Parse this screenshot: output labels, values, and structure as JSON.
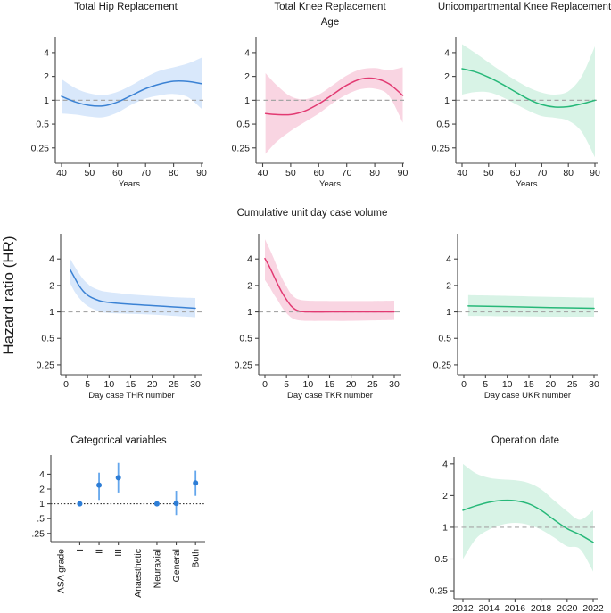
{
  "figure": {
    "y_axis_label": "Hazard ratio (HR)",
    "row2_title": "Cumulative unit day case volume",
    "ref_line_value": 1,
    "colors": {
      "thr_line": "#3b82d4",
      "thr_band": "#d9e8fb",
      "tkr_line": "#e23a72",
      "tkr_band": "#f9d5e2",
      "ukr_line": "#27b879",
      "ukr_band": "#d8f3e6",
      "ci_bar": "#64a6ec",
      "point": "#2d7dd6",
      "ref_dash": "#a6a6a6",
      "ref_dot": "#1a1a1a",
      "axis": "#454545",
      "text": "#1a1a1a"
    }
  },
  "chart_data": [
    {
      "id": "thr-age",
      "type": "line",
      "title": "Total Hip Replacement",
      "xlabel": "Years",
      "line_color": "#3b82d4",
      "band_color": "#d9e8fb",
      "xticks": [
        40,
        50,
        60,
        70,
        80,
        90
      ],
      "xtick_labels": [
        "40",
        "50",
        "60",
        "70",
        "80",
        "90"
      ],
      "yticks": [
        4,
        2,
        1,
        0.5,
        0.25
      ],
      "ytick_labels": [
        "4",
        "2",
        "1",
        "0.5",
        "0.25"
      ],
      "ref": 1,
      "x": [
        40,
        45,
        50,
        55,
        60,
        65,
        70,
        75,
        80,
        85,
        90
      ],
      "y": [
        1.12,
        0.95,
        0.86,
        0.85,
        0.95,
        1.15,
        1.4,
        1.6,
        1.74,
        1.73,
        1.62
      ],
      "lo": [
        0.68,
        0.66,
        0.62,
        0.61,
        0.7,
        0.88,
        1.05,
        1.15,
        1.2,
        1.1,
        0.78
      ],
      "hi": [
        1.85,
        1.42,
        1.22,
        1.16,
        1.28,
        1.55,
        1.95,
        2.35,
        2.6,
        2.9,
        3.45
      ]
    },
    {
      "id": "tkr-age",
      "type": "line",
      "title": "Total Knee Replacement",
      "subtitle": "Age",
      "xlabel": "Years",
      "line_color": "#e23a72",
      "band_color": "#f9d5e2",
      "xticks": [
        40,
        50,
        60,
        70,
        80,
        90
      ],
      "xtick_labels": [
        "40",
        "50",
        "60",
        "70",
        "80",
        "90"
      ],
      "yticks": [
        4,
        2,
        1,
        0.5,
        0.25
      ],
      "ytick_labels": [
        "4",
        "2",
        "1",
        "0.5",
        "0.25"
      ],
      "ref": 1,
      "x": [
        41,
        45,
        50,
        55,
        60,
        65,
        70,
        75,
        80,
        85,
        90
      ],
      "y": [
        0.68,
        0.66,
        0.66,
        0.73,
        0.9,
        1.18,
        1.55,
        1.85,
        1.88,
        1.62,
        1.15
      ],
      "lo": [
        0.21,
        0.3,
        0.41,
        0.53,
        0.68,
        0.92,
        1.18,
        1.38,
        1.4,
        1.15,
        0.52
      ],
      "hi": [
        2.2,
        1.55,
        1.12,
        1.03,
        1.18,
        1.55,
        2.05,
        2.45,
        2.55,
        2.4,
        2.6
      ]
    },
    {
      "id": "ukr-age",
      "type": "line",
      "title": "Unicompartmental Knee Replacement",
      "xlabel": "Years",
      "line_color": "#27b879",
      "band_color": "#d8f3e6",
      "xticks": [
        40,
        50,
        60,
        70,
        80,
        90
      ],
      "xtick_labels": [
        "40",
        "50",
        "60",
        "70",
        "80",
        "90"
      ],
      "yticks": [
        4,
        2,
        1,
        0.5,
        0.25
      ],
      "ytick_labels": [
        "4",
        "2",
        "1",
        "0.5",
        "0.25"
      ],
      "ref": 1,
      "x": [
        40,
        45,
        50,
        55,
        60,
        65,
        70,
        75,
        80,
        85,
        90
      ],
      "y": [
        2.5,
        2.28,
        1.95,
        1.6,
        1.28,
        1.03,
        0.88,
        0.82,
        0.83,
        0.9,
        1.0
      ],
      "lo": [
        1.18,
        1.27,
        1.26,
        1.1,
        0.9,
        0.74,
        0.63,
        0.6,
        0.55,
        0.4,
        0.19
      ],
      "hi": [
        5.1,
        3.95,
        3.0,
        2.3,
        1.8,
        1.45,
        1.25,
        1.18,
        1.3,
        2.0,
        4.8
      ]
    },
    {
      "id": "thr-volume",
      "type": "line",
      "xlabel": "Day case THR number",
      "line_color": "#3b82d4",
      "band_color": "#d9e8fb",
      "xticks": [
        0,
        5,
        10,
        15,
        20,
        25,
        30
      ],
      "xtick_labels": [
        "0",
        "5",
        "10",
        "15",
        "20",
        "25",
        "30"
      ],
      "yticks": [
        4,
        2,
        1,
        0.5,
        0.25
      ],
      "ytick_labels": [
        "4",
        "2",
        "1",
        "0.5",
        "0.25"
      ],
      "ref": 1,
      "x": [
        1,
        2,
        3,
        4,
        5,
        6,
        8,
        10,
        15,
        20,
        25,
        30
      ],
      "y": [
        3.0,
        2.45,
        2.0,
        1.72,
        1.55,
        1.45,
        1.33,
        1.28,
        1.22,
        1.18,
        1.14,
        1.1
      ],
      "lo": [
        2.1,
        1.7,
        1.45,
        1.28,
        1.17,
        1.1,
        1.0,
        0.97,
        0.95,
        0.93,
        0.9,
        0.87
      ],
      "hi": [
        4.0,
        3.3,
        2.75,
        2.35,
        2.1,
        1.92,
        1.75,
        1.68,
        1.58,
        1.52,
        1.47,
        1.44
      ]
    },
    {
      "id": "tkr-volume",
      "type": "line",
      "xlabel": "Day case TKR number",
      "line_color": "#e23a72",
      "band_color": "#f9d5e2",
      "xticks": [
        0,
        5,
        10,
        15,
        20,
        25,
        30
      ],
      "xtick_labels": [
        "0",
        "5",
        "10",
        "15",
        "20",
        "25",
        "30"
      ],
      "yticks": [
        4,
        2,
        1,
        0.5,
        0.25
      ],
      "ytick_labels": [
        "4",
        "2",
        "1",
        "0.5",
        "0.25"
      ],
      "ref": 1,
      "x": [
        0,
        1,
        2,
        3,
        4,
        5,
        6,
        7,
        8,
        10,
        15,
        20,
        25,
        30
      ],
      "y": [
        4.05,
        3.3,
        2.6,
        2.05,
        1.65,
        1.38,
        1.18,
        1.07,
        1.02,
        1.0,
        1.0,
        1.0,
        1.0,
        1.0
      ],
      "lo": [
        2.3,
        1.95,
        1.6,
        1.35,
        1.12,
        0.97,
        0.87,
        0.82,
        0.8,
        0.79,
        0.79,
        0.79,
        0.8,
        0.81
      ],
      "hi": [
        6.7,
        5.3,
        4.1,
        3.1,
        2.4,
        1.95,
        1.62,
        1.45,
        1.38,
        1.34,
        1.33,
        1.33,
        1.33,
        1.34
      ]
    },
    {
      "id": "ukr-volume",
      "type": "line",
      "xlabel": "Day case UKR number",
      "line_color": "#27b879",
      "band_color": "#d8f3e6",
      "xticks": [
        0,
        5,
        10,
        15,
        20,
        25,
        30
      ],
      "xtick_labels": [
        "0",
        "5",
        "10",
        "15",
        "20",
        "25",
        "30"
      ],
      "yticks": [
        4,
        2,
        1,
        0.5,
        0.25
      ],
      "ytick_labels": [
        "4",
        "2",
        "1",
        "0.5",
        "0.25"
      ],
      "ref": 1,
      "x": [
        1,
        10,
        20,
        30
      ],
      "y": [
        1.17,
        1.15,
        1.12,
        1.1
      ],
      "lo": [
        0.9,
        0.89,
        0.88,
        0.88
      ],
      "hi": [
        1.55,
        1.52,
        1.48,
        1.45
      ]
    },
    {
      "id": "categorical",
      "type": "scatter",
      "title": "Categorical variables",
      "yticks": [
        4,
        2,
        1,
        0.5,
        0.25
      ],
      "ytick_labels": [
        "4",
        "2",
        "1",
        ".5",
        ".25"
      ],
      "ref": 1,
      "categories": [
        {
          "label": "ASA grade",
          "tick": false,
          "point": null
        },
        {
          "label": "I",
          "tick": true,
          "point": {
            "y": 1.0
          }
        },
        {
          "label": "II",
          "tick": true,
          "point": {
            "y": 2.4,
            "lo": 1.2,
            "hi": 4.3
          }
        },
        {
          "label": "III",
          "tick": true,
          "point": {
            "y": 3.4,
            "lo": 1.7,
            "hi": 6.8
          }
        },
        {
          "label": "Anaesthetic",
          "tick": false,
          "point": null
        },
        {
          "label": "Neuraxial",
          "tick": true,
          "point": {
            "y": 1.0
          }
        },
        {
          "label": "General",
          "tick": true,
          "point": {
            "y": 1.02,
            "lo": 0.59,
            "hi": 1.84
          }
        },
        {
          "label": "Both",
          "tick": true,
          "point": {
            "y": 2.66,
            "lo": 1.45,
            "hi": 4.7
          }
        }
      ]
    },
    {
      "id": "operation-date",
      "type": "line",
      "title": "Operation date",
      "line_color": "#27b879",
      "band_color": "#d8f3e6",
      "xticks": [
        2012,
        2014,
        2016,
        2018,
        2020,
        2022
      ],
      "xtick_labels": [
        "2012",
        "2014",
        "2016",
        "2018",
        "2020",
        "2022"
      ],
      "yticks": [
        4,
        2,
        1,
        0.5,
        0.25
      ],
      "ytick_labels": [
        "4",
        "2",
        "1",
        "0.5",
        "0.25"
      ],
      "ref": 1,
      "x": [
        2012,
        2013,
        2014,
        2015,
        2016,
        2017,
        2018,
        2019,
        2020,
        2021,
        2022
      ],
      "y": [
        1.45,
        1.6,
        1.73,
        1.8,
        1.79,
        1.68,
        1.45,
        1.18,
        0.97,
        0.85,
        0.72
      ],
      "lo": [
        0.5,
        0.78,
        0.95,
        1.06,
        1.1,
        1.06,
        0.95,
        0.8,
        0.66,
        0.62,
        0.38
      ],
      "hi": [
        4.0,
        3.25,
        2.95,
        2.85,
        2.8,
        2.65,
        2.3,
        1.8,
        1.42,
        1.18,
        1.45
      ]
    }
  ]
}
